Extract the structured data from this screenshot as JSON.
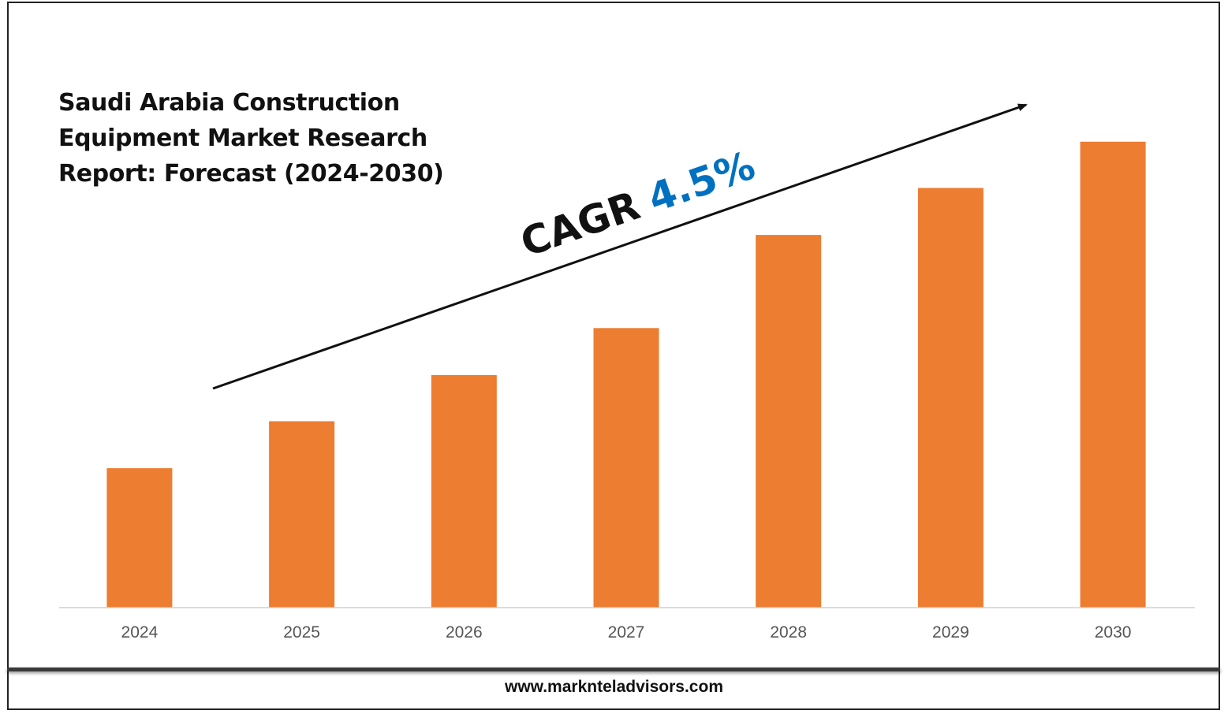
{
  "chart_data": {
    "type": "bar",
    "title": "Saudi Arabia Construction Equipment Market Research Report: Forecast (2024-2030)",
    "categories": [
      "2024",
      "2025",
      "2026",
      "2027",
      "2028",
      "2029",
      "2030"
    ],
    "values": [
      178,
      238,
      297,
      357,
      476,
      536,
      595
    ],
    "ylim": [
      0,
      620
    ],
    "grid": false,
    "bar_color": "#ED7D31",
    "annotation": {
      "prefix": "CAGR",
      "value": "4.5%",
      "prefix_color": "#111111",
      "value_color": "#0070C0"
    }
  },
  "footer": {
    "url": "www.marknteladvisors.com"
  }
}
